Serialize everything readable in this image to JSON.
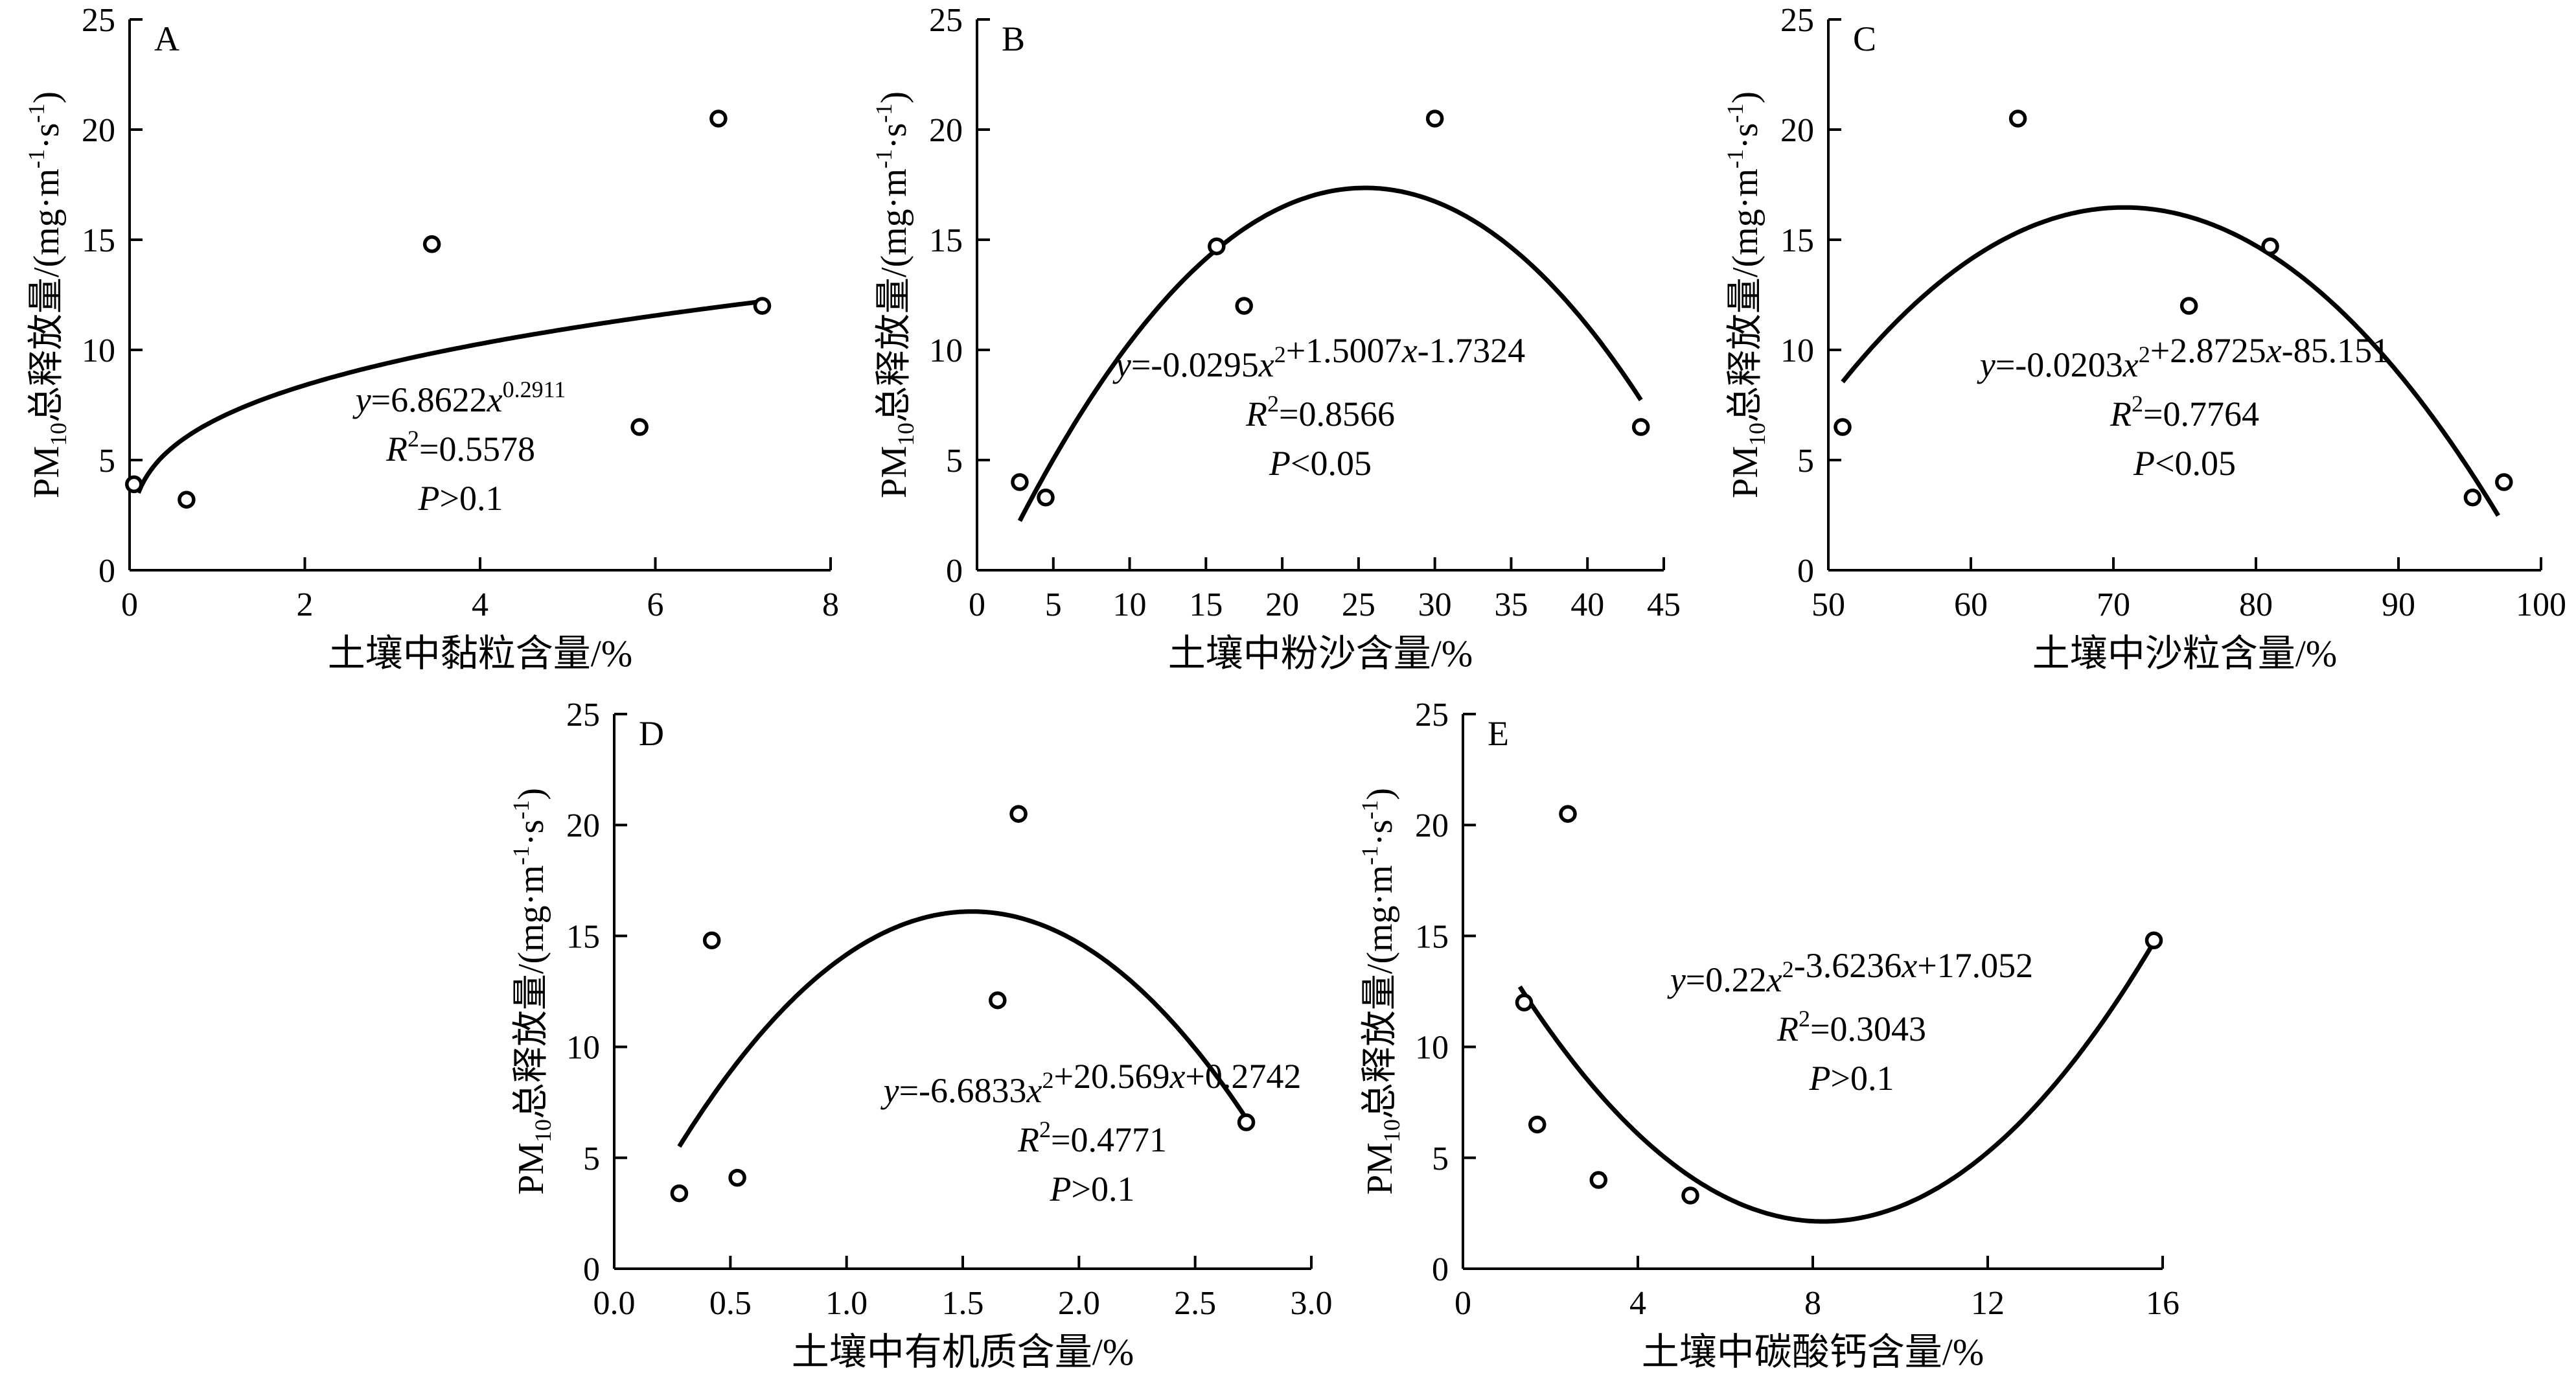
{
  "chart_data": [
    {
      "type": "scatter",
      "panel_label": "A",
      "xlabel": "土壤中黏粒含量/%",
      "ylabel": {
        "prefix": "PM",
        "sub": "10",
        "mid": "总释放量/(mg·m",
        "sup1": "-1",
        "dot": "·s",
        "sup2": "-1",
        "end": ")"
      },
      "xlim": [
        0,
        8
      ],
      "ylim": [
        0,
        25
      ],
      "xticks": [
        0,
        2,
        4,
        6,
        8
      ],
      "xtick_labels": [
        "0",
        "2",
        "4",
        "6",
        "8"
      ],
      "yticks": [
        0,
        5,
        10,
        15,
        20,
        25
      ],
      "ytick_labels": [
        "0",
        "5",
        "10",
        "15",
        "20",
        "25"
      ],
      "points": {
        "x": [
          0.05,
          0.65,
          3.45,
          5.82,
          6.72,
          7.22
        ],
        "y": [
          3.9,
          3.2,
          14.8,
          6.5,
          20.5,
          12.0
        ]
      },
      "fit": {
        "kind": "power",
        "coef": [
          6.8622,
          0.2911
        ],
        "domain": [
          0.1,
          7.22
        ]
      },
      "annotation": {
        "equation": [
          {
            "t": "y",
            "i": true
          },
          {
            "t": "=6.8622"
          },
          {
            "t": "x",
            "i": true
          },
          {
            "t": "0.2911",
            "sup": true
          }
        ],
        "r2": "=0.5578",
        "p": ">0.1"
      }
    },
    {
      "type": "scatter",
      "panel_label": "B",
      "xlabel": "土壤中粉沙含量/%",
      "ylabel": {
        "prefix": "PM",
        "sub": "10",
        "mid": "总释放量/(mg·m",
        "sup1": "-1",
        "dot": "·s",
        "sup2": "-1",
        "end": ")"
      },
      "xlim": [
        0,
        45
      ],
      "ylim": [
        0,
        25
      ],
      "xticks": [
        0,
        5,
        10,
        15,
        20,
        25,
        30,
        35,
        40,
        45
      ],
      "xtick_labels": [
        "0",
        "5",
        "10",
        "15",
        "20",
        "25",
        "30",
        "35",
        "40",
        "45"
      ],
      "yticks": [
        0,
        5,
        10,
        15,
        20,
        25
      ],
      "ytick_labels": [
        "0",
        "5",
        "10",
        "15",
        "20",
        "25"
      ],
      "points": {
        "x": [
          2.8,
          4.5,
          15.7,
          17.5,
          30.0,
          43.5
        ],
        "y": [
          4.0,
          3.3,
          14.7,
          12.0,
          20.5,
          6.5
        ]
      },
      "fit": {
        "kind": "poly2",
        "coef": [
          -0.0295,
          1.5007,
          -1.7324
        ],
        "domain": [
          2.8,
          43.5
        ]
      },
      "annotation": {
        "equation": [
          {
            "t": "y",
            "i": true
          },
          {
            "t": "=-0.0295"
          },
          {
            "t": "x",
            "i": true
          },
          {
            "t": "2",
            "sup": true
          },
          {
            "t": "+1.5007"
          },
          {
            "t": "x",
            "i": true
          },
          {
            "t": "-1.7324"
          }
        ],
        "r2": "=0.8566",
        "p": "<0.05"
      }
    },
    {
      "type": "scatter",
      "panel_label": "C",
      "xlabel": "土壤中沙粒含量/%",
      "ylabel": {
        "prefix": "PM",
        "sub": "10",
        "mid": "总释放量/(mg·m",
        "sup1": "-1",
        "dot": "·s",
        "sup2": "-1",
        "end": ")"
      },
      "xlim": [
        50,
        100
      ],
      "ylim": [
        0,
        25
      ],
      "xticks": [
        50,
        60,
        70,
        80,
        90,
        100
      ],
      "xtick_labels": [
        "50",
        "60",
        "70",
        "80",
        "90",
        "100"
      ],
      "yticks": [
        0,
        5,
        10,
        15,
        20,
        25
      ],
      "ytick_labels": [
        "0",
        "5",
        "10",
        "15",
        "20",
        "25"
      ],
      "points": {
        "x": [
          51.0,
          63.3,
          75.3,
          81.0,
          95.2,
          97.4
        ],
        "y": [
          6.5,
          20.5,
          12.0,
          14.7,
          3.3,
          4.0
        ]
      },
      "fit": {
        "kind": "poly2",
        "coef": [
          -0.0203,
          2.8725,
          -85.151
        ],
        "domain": [
          51.0,
          97.0
        ]
      },
      "annotation": {
        "equation": [
          {
            "t": "y",
            "i": true
          },
          {
            "t": "=-0.0203"
          },
          {
            "t": "x",
            "i": true
          },
          {
            "t": "2",
            "sup": true
          },
          {
            "t": "+2.8725"
          },
          {
            "t": "x",
            "i": true
          },
          {
            "t": "-85.151"
          }
        ],
        "r2": "=0.7764",
        "p": "<0.05"
      }
    },
    {
      "type": "scatter",
      "panel_label": "D",
      "xlabel": "土壤中有机质含量/%",
      "ylabel": {
        "prefix": "PM",
        "sub": "10",
        "mid": "总释放量/(mg·m",
        "sup1": "-1",
        "dot": "·s",
        "sup2": "-1",
        "end": ")"
      },
      "xlim": [
        0,
        3
      ],
      "ylim": [
        0,
        25
      ],
      "xticks": [
        0,
        0.5,
        1.0,
        1.5,
        2.0,
        2.5,
        3.0
      ],
      "xtick_labels": [
        "0.0",
        "0.5",
        "1.0",
        "1.5",
        "2.0",
        "2.5",
        "3.0"
      ],
      "yticks": [
        0,
        5,
        10,
        15,
        20,
        25
      ],
      "ytick_labels": [
        "0",
        "5",
        "10",
        "15",
        "20",
        "25"
      ],
      "points": {
        "x": [
          0.28,
          0.42,
          0.53,
          1.65,
          1.74,
          2.72
        ],
        "y": [
          3.4,
          14.8,
          4.1,
          12.1,
          20.5,
          6.6
        ]
      },
      "fit": {
        "kind": "poly2",
        "coef": [
          -6.6833,
          20.569,
          0.2742
        ],
        "domain": [
          0.28,
          2.72
        ]
      },
      "annotation": {
        "equation": [
          {
            "t": "y",
            "i": true
          },
          {
            "t": "=-6.6833"
          },
          {
            "t": "x",
            "i": true
          },
          {
            "t": "2",
            "sup": true
          },
          {
            "t": "+20.569"
          },
          {
            "t": "x",
            "i": true
          },
          {
            "t": "+0.2742"
          }
        ],
        "r2": "=0.4771",
        "p": ">0.1"
      }
    },
    {
      "type": "scatter",
      "panel_label": "E",
      "xlabel": "土壤中碳酸钙含量/%",
      "ylabel": {
        "prefix": "PM",
        "sub": "10",
        "mid": "总释放量/(mg·m",
        "sup1": "-1",
        "dot": "·s",
        "sup2": "-1",
        "end": ")"
      },
      "xlim": [
        0,
        16
      ],
      "ylim": [
        0,
        25
      ],
      "xticks": [
        0,
        4,
        8,
        12,
        16
      ],
      "xtick_labels": [
        "0",
        "4",
        "8",
        "12",
        "16"
      ],
      "yticks": [
        0,
        5,
        10,
        15,
        20,
        25
      ],
      "ytick_labels": [
        "0",
        "5",
        "10",
        "15",
        "20",
        "25"
      ],
      "points": {
        "x": [
          1.4,
          1.7,
          2.4,
          3.1,
          5.2,
          15.8
        ],
        "y": [
          12.0,
          6.5,
          20.5,
          4.0,
          3.3,
          14.8
        ]
      },
      "fit": {
        "kind": "poly2",
        "coef": [
          0.22,
          -3.6236,
          17.052
        ],
        "domain": [
          1.3,
          15.8
        ]
      },
      "annotation": {
        "equation": [
          {
            "t": "y",
            "i": true
          },
          {
            "t": "=0.22"
          },
          {
            "t": "x",
            "i": true
          },
          {
            "t": "2",
            "sup": true
          },
          {
            "t": "-3.6236"
          },
          {
            "t": "x",
            "i": true
          },
          {
            "t": "+17.052"
          }
        ],
        "r2": "=0.3043",
        "p": ">0.1"
      }
    }
  ]
}
